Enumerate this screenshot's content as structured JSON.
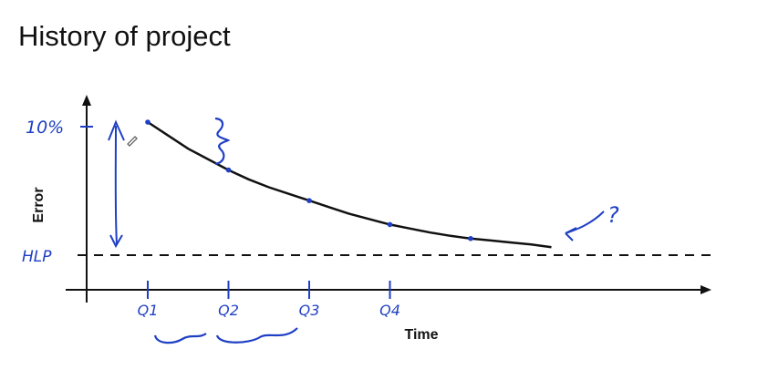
{
  "title": "History of project",
  "chart_data": {
    "type": "line",
    "xlabel": "Time",
    "ylabel": "Error",
    "y_top_label": "10%",
    "baseline_label": "HLP",
    "x_tick_labels": [
      "Q1",
      "Q2",
      "Q3",
      "Q4"
    ],
    "question_mark": "?",
    "series": [
      {
        "x": [
          0.0,
          0.25,
          0.5,
          0.75,
          1.0,
          1.25,
          1.5,
          1.75,
          2.0,
          2.25,
          2.5,
          2.75,
          3.0,
          3.25,
          3.5,
          3.75,
          4.0,
          4.25,
          4.5,
          4.75,
          5.0
        ],
        "y": [
          10.0,
          9.0,
          8.0,
          7.2,
          6.4,
          5.7,
          5.1,
          4.6,
          4.1,
          3.6,
          3.1,
          2.7,
          2.3,
          2.0,
          1.7,
          1.45,
          1.25,
          1.1,
          0.95,
          0.8,
          0.6
        ]
      }
    ],
    "points": [
      {
        "x": 0,
        "y": 10.0
      },
      {
        "x": 1,
        "y": 6.4
      },
      {
        "x": 2,
        "y": 4.1
      },
      {
        "x": 3,
        "y": 2.3
      },
      {
        "x": 4,
        "y": 1.25
      }
    ],
    "baseline_y": 0,
    "colors": {
      "curve": "#111111",
      "annotation": "#1f3fc4",
      "axis": "#111111"
    }
  }
}
